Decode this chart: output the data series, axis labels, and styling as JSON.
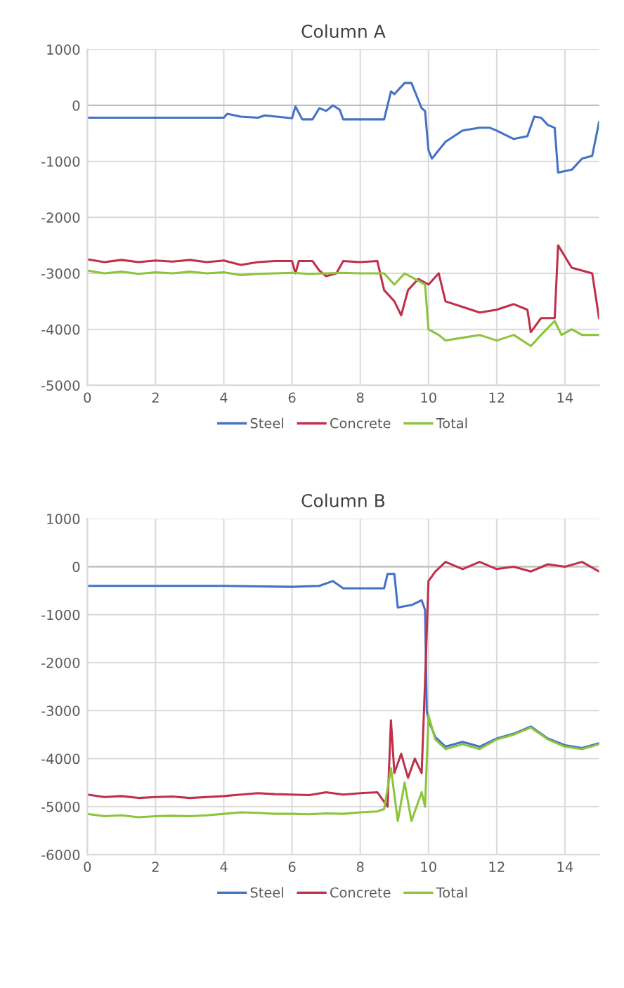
{
  "chart_data": [
    {
      "type": "line",
      "title": "Column A",
      "xlim": [
        0,
        15
      ],
      "xticks": [
        0,
        2,
        4,
        6,
        8,
        10,
        12,
        14
      ],
      "ylim": [
        -5000,
        1000
      ],
      "yticks": [
        -5000,
        -4000,
        -3000,
        -2000,
        -1000,
        0,
        1000
      ],
      "grid": true,
      "legend": "bottom",
      "line_style": "solid",
      "marker": "none",
      "series": [
        {
          "name": "Steel",
          "color": "#4472c4",
          "x": [
            0,
            2,
            4,
            4.1,
            4.5,
            5,
            5.2,
            6,
            6.1,
            6.3,
            6.6,
            6.8,
            7.0,
            7.2,
            7.4,
            7.5,
            8.7,
            8.9,
            9.0,
            9.3,
            9.5,
            9.7,
            9.8,
            9.9,
            10.0,
            10.1,
            10.5,
            11,
            11.5,
            11.8,
            12,
            12.5,
            12.9,
            13.1,
            13.3,
            13.5,
            13.7,
            13.8,
            14.2,
            14.5,
            14.8,
            15.0
          ],
          "values": [
            -220,
            -220,
            -220,
            -150,
            -200,
            -220,
            -180,
            -230,
            -20,
            -250,
            -250,
            -50,
            -100,
            0,
            -80,
            -250,
            -250,
            250,
            200,
            400,
            400,
            100,
            -50,
            -100,
            -800,
            -950,
            -650,
            -450,
            -400,
            -400,
            -450,
            -600,
            -550,
            -200,
            -220,
            -350,
            -400,
            -1200,
            -1150,
            -950,
            -900,
            -300
          ]
        },
        {
          "name": "Concrete",
          "color": "#c0304a",
          "x": [
            0,
            0.5,
            1,
            1.5,
            2,
            2.5,
            3,
            3.5,
            4,
            4.5,
            5,
            5.5,
            6,
            6.1,
            6.2,
            6.6,
            6.8,
            7.0,
            7.3,
            7.5,
            8.0,
            8.5,
            8.7,
            9.0,
            9.2,
            9.4,
            9.7,
            10.0,
            10.3,
            10.5,
            11,
            11.5,
            12,
            12.5,
            12.9,
            13.0,
            13.3,
            13.7,
            13.8,
            14.2,
            14.5,
            14.8,
            15.0
          ],
          "values": [
            -2750,
            -2800,
            -2760,
            -2800,
            -2770,
            -2790,
            -2760,
            -2800,
            -2770,
            -2850,
            -2800,
            -2780,
            -2780,
            -3000,
            -2780,
            -2780,
            -2950,
            -3050,
            -3000,
            -2780,
            -2800,
            -2780,
            -3300,
            -3500,
            -3750,
            -3300,
            -3100,
            -3200,
            -3000,
            -3500,
            -3600,
            -3700,
            -3650,
            -3550,
            -3650,
            -4050,
            -3800,
            -3800,
            -2500,
            -2900,
            -2950,
            -3000,
            -3800
          ]
        },
        {
          "name": "Total",
          "color": "#8cc43c",
          "x": [
            0,
            0.5,
            1,
            1.5,
            2,
            2.5,
            3,
            3.5,
            4,
            4.5,
            5,
            5.5,
            6,
            6.5,
            7,
            7.5,
            8,
            8.5,
            8.7,
            9.0,
            9.3,
            9.6,
            9.9,
            10.0,
            10.3,
            10.5,
            11,
            11.5,
            12,
            12.5,
            13,
            13.3,
            13.7,
            13.9,
            14.2,
            14.5,
            15.0
          ],
          "values": [
            -2950,
            -3000,
            -2970,
            -3010,
            -2980,
            -3000,
            -2970,
            -3000,
            -2980,
            -3030,
            -3010,
            -3000,
            -2990,
            -3010,
            -3000,
            -2990,
            -3000,
            -3000,
            -3000,
            -3200,
            -3000,
            -3100,
            -3200,
            -4000,
            -4100,
            -4200,
            -4150,
            -4100,
            -4200,
            -4100,
            -4300,
            -4100,
            -3850,
            -4100,
            -4000,
            -4100,
            -4100
          ]
        }
      ]
    },
    {
      "type": "line",
      "title": "Column B",
      "xlim": [
        0,
        15
      ],
      "xticks": [
        0,
        2,
        4,
        6,
        8,
        10,
        12,
        14
      ],
      "ylim": [
        -6000,
        1000
      ],
      "yticks": [
        -6000,
        -5000,
        -4000,
        -3000,
        -2000,
        -1000,
        0,
        1000
      ],
      "grid": true,
      "legend": "bottom",
      "line_style": "solid",
      "marker": "none",
      "series": [
        {
          "name": "Steel",
          "color": "#4472c4",
          "x": [
            0,
            2,
            4,
            6,
            6.8,
            7.2,
            7.5,
            8.7,
            8.8,
            9.0,
            9.1,
            9.5,
            9.8,
            9.9,
            9.95,
            10.0,
            10.2,
            10.5,
            11,
            11.5,
            12,
            12.5,
            13,
            13.5,
            14,
            14.5,
            15.0
          ],
          "values": [
            -400,
            -400,
            -400,
            -420,
            -400,
            -300,
            -450,
            -450,
            -150,
            -150,
            -850,
            -800,
            -700,
            -900,
            -3000,
            -3200,
            -3550,
            -3750,
            -3650,
            -3750,
            -3580,
            -3480,
            -3330,
            -3580,
            -3720,
            -3780,
            -3680
          ]
        },
        {
          "name": "Concrete",
          "color": "#c0304a",
          "x": [
            0,
            0.5,
            1,
            1.5,
            2,
            2.5,
            3,
            3.5,
            4,
            4.5,
            5,
            5.5,
            6,
            6.5,
            7,
            7.5,
            8,
            8.5,
            8.8,
            8.9,
            9.0,
            9.2,
            9.4,
            9.6,
            9.8,
            9.9,
            10.0,
            10.2,
            10.5,
            11,
            11.5,
            12,
            12.5,
            13,
            13.5,
            14,
            14.5,
            15.0
          ],
          "values": [
            -4750,
            -4800,
            -4780,
            -4820,
            -4800,
            -4790,
            -4820,
            -4800,
            -4780,
            -4750,
            -4720,
            -4740,
            -4750,
            -4760,
            -4700,
            -4750,
            -4720,
            -4700,
            -5000,
            -3200,
            -4300,
            -3900,
            -4400,
            -4000,
            -4300,
            -2400,
            -300,
            -100,
            100,
            -50,
            100,
            -50,
            0,
            -100,
            50,
            0,
            100,
            -100
          ]
        },
        {
          "name": "Total",
          "color": "#8cc43c",
          "x": [
            0,
            0.5,
            1,
            1.5,
            2,
            2.5,
            3,
            3.5,
            4,
            4.5,
            5,
            5.5,
            6,
            6.5,
            7,
            7.5,
            8,
            8.5,
            8.7,
            8.9,
            9.1,
            9.3,
            9.5,
            9.8,
            9.9,
            10.0,
            10.2,
            10.5,
            11,
            11.5,
            12,
            12.5,
            13,
            13.5,
            14,
            14.5,
            15.0
          ],
          "values": [
            -5150,
            -5200,
            -5180,
            -5220,
            -5200,
            -5190,
            -5200,
            -5180,
            -5150,
            -5120,
            -5130,
            -5150,
            -5150,
            -5160,
            -5140,
            -5150,
            -5120,
            -5100,
            -5050,
            -4200,
            -5300,
            -4500,
            -5300,
            -4700,
            -5000,
            -3100,
            -3600,
            -3800,
            -3700,
            -3800,
            -3600,
            -3500,
            -3350,
            -3600,
            -3750,
            -3800,
            -3700
          ]
        }
      ]
    }
  ]
}
